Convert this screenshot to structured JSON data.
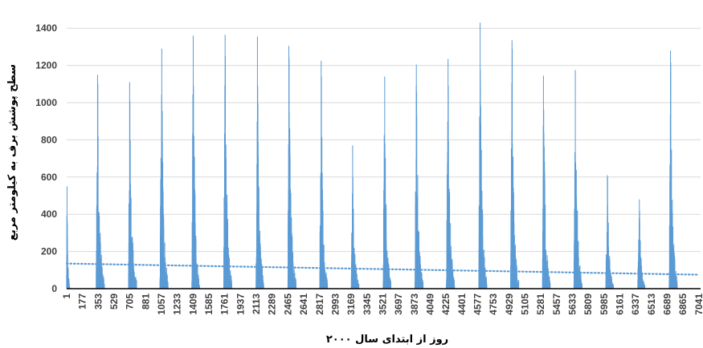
{
  "chart_data": {
    "type": "bar",
    "xlabel": "روز از ابتدای سال ۲۰۰۰",
    "ylabel": "سطح پوشش برف به کیلومتر مربع",
    "ylim": [
      0,
      1500
    ],
    "yticks": [
      0,
      200,
      400,
      600,
      800,
      1000,
      1200,
      1400
    ],
    "xlim": [
      1,
      7060
    ],
    "xticks": [
      1,
      177,
      353,
      529,
      705,
      881,
      1057,
      1233,
      1409,
      1585,
      1761,
      1937,
      2113,
      2289,
      2465,
      2641,
      2817,
      2993,
      3169,
      3345,
      3521,
      3697,
      3873,
      4049,
      4225,
      4401,
      4577,
      4753,
      4929,
      5105,
      5281,
      5457,
      5633,
      5809,
      5985,
      6161,
      6337,
      6513,
      6689,
      6865,
      7041
    ],
    "grid": true,
    "series": [
      {
        "type": "spikes",
        "color": "#5B9BD5",
        "seasons": [
          {
            "start": 0,
            "end": 35,
            "peak_day": 5,
            "peak": 550,
            "second": 350
          },
          {
            "start": 330,
            "end": 420,
            "peak_day": 345,
            "peak": 1150,
            "second": 1100
          },
          {
            "start": 690,
            "end": 780,
            "peak_day": 702,
            "peak": 1110,
            "second": 1010
          },
          {
            "start": 1040,
            "end": 1130,
            "peak_day": 1060,
            "peak": 1290,
            "second": 870
          },
          {
            "start": 1395,
            "end": 1480,
            "peak_day": 1410,
            "peak": 1360,
            "second": 1090
          },
          {
            "start": 1750,
            "end": 1840,
            "peak_day": 1765,
            "peak": 1365,
            "second": 1250
          },
          {
            "start": 2110,
            "end": 2195,
            "peak_day": 2125,
            "peak": 1355,
            "second": 1090
          },
          {
            "start": 2465,
            "end": 2555,
            "peak_day": 2475,
            "peak": 1305,
            "second": 1240
          },
          {
            "start": 2820,
            "end": 2905,
            "peak_day": 2835,
            "peak": 1225,
            "second": 1140
          },
          {
            "start": 3170,
            "end": 3255,
            "peak_day": 3185,
            "peak": 770,
            "second": 600
          },
          {
            "start": 3525,
            "end": 3610,
            "peak_day": 3542,
            "peak": 1140,
            "second": 780
          },
          {
            "start": 3880,
            "end": 3970,
            "peak_day": 3895,
            "peak": 1205,
            "second": 1060
          },
          {
            "start": 4230,
            "end": 4320,
            "peak_day": 4248,
            "peak": 1235,
            "second": 1090
          },
          {
            "start": 4590,
            "end": 4680,
            "peak_day": 4605,
            "peak": 1430,
            "second": 870
          },
          {
            "start": 4945,
            "end": 5035,
            "peak_day": 4960,
            "peak": 1335,
            "second": 1290
          },
          {
            "start": 5300,
            "end": 5385,
            "peak_day": 5310,
            "peak": 1145,
            "second": 960
          },
          {
            "start": 5650,
            "end": 5740,
            "peak_day": 5665,
            "peak": 1175,
            "second": 680
          },
          {
            "start": 6005,
            "end": 6090,
            "peak_day": 6022,
            "peak": 610,
            "second": 600
          },
          {
            "start": 6360,
            "end": 6440,
            "peak_day": 6378,
            "peak": 480,
            "second": 420
          },
          {
            "start": 6710,
            "end": 6800,
            "peak_day": 6725,
            "peak": 1280,
            "second": 1215
          }
        ]
      },
      {
        "type": "trendline",
        "style": "dotted",
        "color": "#5B9BD5",
        "x": [
          1,
          7041
        ],
        "y": [
          135,
          75
        ]
      }
    ]
  }
}
